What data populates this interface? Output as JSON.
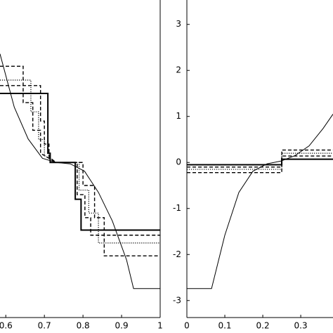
{
  "chart_data": [
    {
      "type": "line",
      "xlim": [
        0.585,
        1
      ],
      "ylim": [
        -3.37,
        3.53
      ],
      "xticks": [
        0.6,
        0.7,
        0.8,
        0.9,
        1
      ],
      "series": [
        {
          "style": "thin",
          "color": "#000000",
          "x": [
            0.585,
            0.622,
            0.658,
            0.695,
            0.731,
            0.767,
            0.804,
            0.84,
            0.876,
            0.913,
            0.931,
            1
          ],
          "values": [
            2.36,
            1.2,
            0.51,
            0.09,
            0,
            -0.03,
            -0.19,
            -0.65,
            -1.27,
            -2.12,
            -2.74,
            -2.74
          ]
        },
        {
          "style": "thick",
          "color": "#000000",
          "x": [
            0.585,
            0.709,
            0.709,
            0.715,
            0.715,
            0.78,
            0.78,
            0.795,
            0.795,
            1
          ],
          "values": [
            1.5,
            1.5,
            0.2,
            0.2,
            0,
            0,
            -0.8,
            -0.8,
            -1.47,
            -1.47
          ]
        },
        {
          "style": "dashed",
          "color": "#000000",
          "x": [
            0.585,
            0.645,
            0.645,
            0.67,
            0.67,
            0.69,
            0.69,
            0.73,
            0.8,
            0.8,
            0.83,
            0.83,
            0.855,
            0.855,
            1
          ],
          "values": [
            2.09,
            2.09,
            1.3,
            1.3,
            0.7,
            0.7,
            0.2,
            0,
            0,
            -0.5,
            -0.5,
            -1.2,
            -1.2,
            -2.03,
            -2.03
          ]
        },
        {
          "style": "dotted",
          "color": "#000000",
          "x": [
            0.585,
            0.665,
            0.665,
            0.685,
            0.685,
            0.7,
            0.7,
            0.73,
            0.79,
            0.79,
            0.815,
            0.815,
            0.84,
            0.84,
            1
          ],
          "values": [
            1.79,
            1.79,
            1.1,
            1.1,
            0.5,
            0.5,
            0.15,
            0,
            0,
            -0.6,
            -0.6,
            -1.1,
            -1.1,
            -1.75,
            -1.75
          ]
        },
        {
          "style": "dashed",
          "color": "#000000",
          "x": [
            0.585,
            0.69,
            0.69,
            0.7,
            0.7,
            0.712,
            0.712,
            0.73,
            0.785,
            0.785,
            0.805,
            0.805,
            0.82,
            0.82,
            1
          ],
          "values": [
            1.67,
            1.67,
            0.9,
            0.9,
            0.4,
            0.4,
            0.12,
            0,
            0,
            -0.7,
            -0.7,
            -1.2,
            -1.2,
            -1.58,
            -1.58
          ]
        }
      ]
    },
    {
      "type": "line",
      "xlim": [
        0,
        0.385
      ],
      "ylim": [
        -3.37,
        3.53
      ],
      "xticks": [
        0,
        0.1,
        0.2,
        0.3
      ],
      "yticks": [
        -3,
        -2,
        -1,
        0,
        1,
        2,
        3
      ],
      "series": [
        {
          "style": "thin",
          "color": "#000000",
          "x": [
            0,
            0.065,
            0.1,
            0.137,
            0.174,
            0.211,
            0.248,
            0.285,
            0.322,
            0.359,
            0.385
          ],
          "values": [
            -2.74,
            -2.74,
            -1.58,
            -0.65,
            -0.19,
            -0.03,
            0.03,
            0.15,
            0.36,
            0.74,
            1.05
          ]
        },
        {
          "style": "thick",
          "color": "#000000",
          "x": [
            0,
            0.25,
            0.25,
            0.385
          ],
          "values": [
            -0.05,
            -0.05,
            0.07,
            0.07
          ]
        },
        {
          "style": "dashed",
          "color": "#000000",
          "x": [
            0,
            0.25,
            0.25,
            0.385
          ],
          "values": [
            -0.22,
            -0.22,
            0.27,
            0.27
          ]
        },
        {
          "style": "dotted",
          "color": "#000000",
          "x": [
            0,
            0.25,
            0.25,
            0.385
          ],
          "values": [
            -0.15,
            -0.15,
            0.2,
            0.2
          ]
        },
        {
          "style": "dashed",
          "color": "#000000",
          "x": [
            0,
            0.25,
            0.25,
            0.385
          ],
          "values": [
            -0.1,
            -0.1,
            0.14,
            0.14
          ]
        }
      ]
    }
  ]
}
